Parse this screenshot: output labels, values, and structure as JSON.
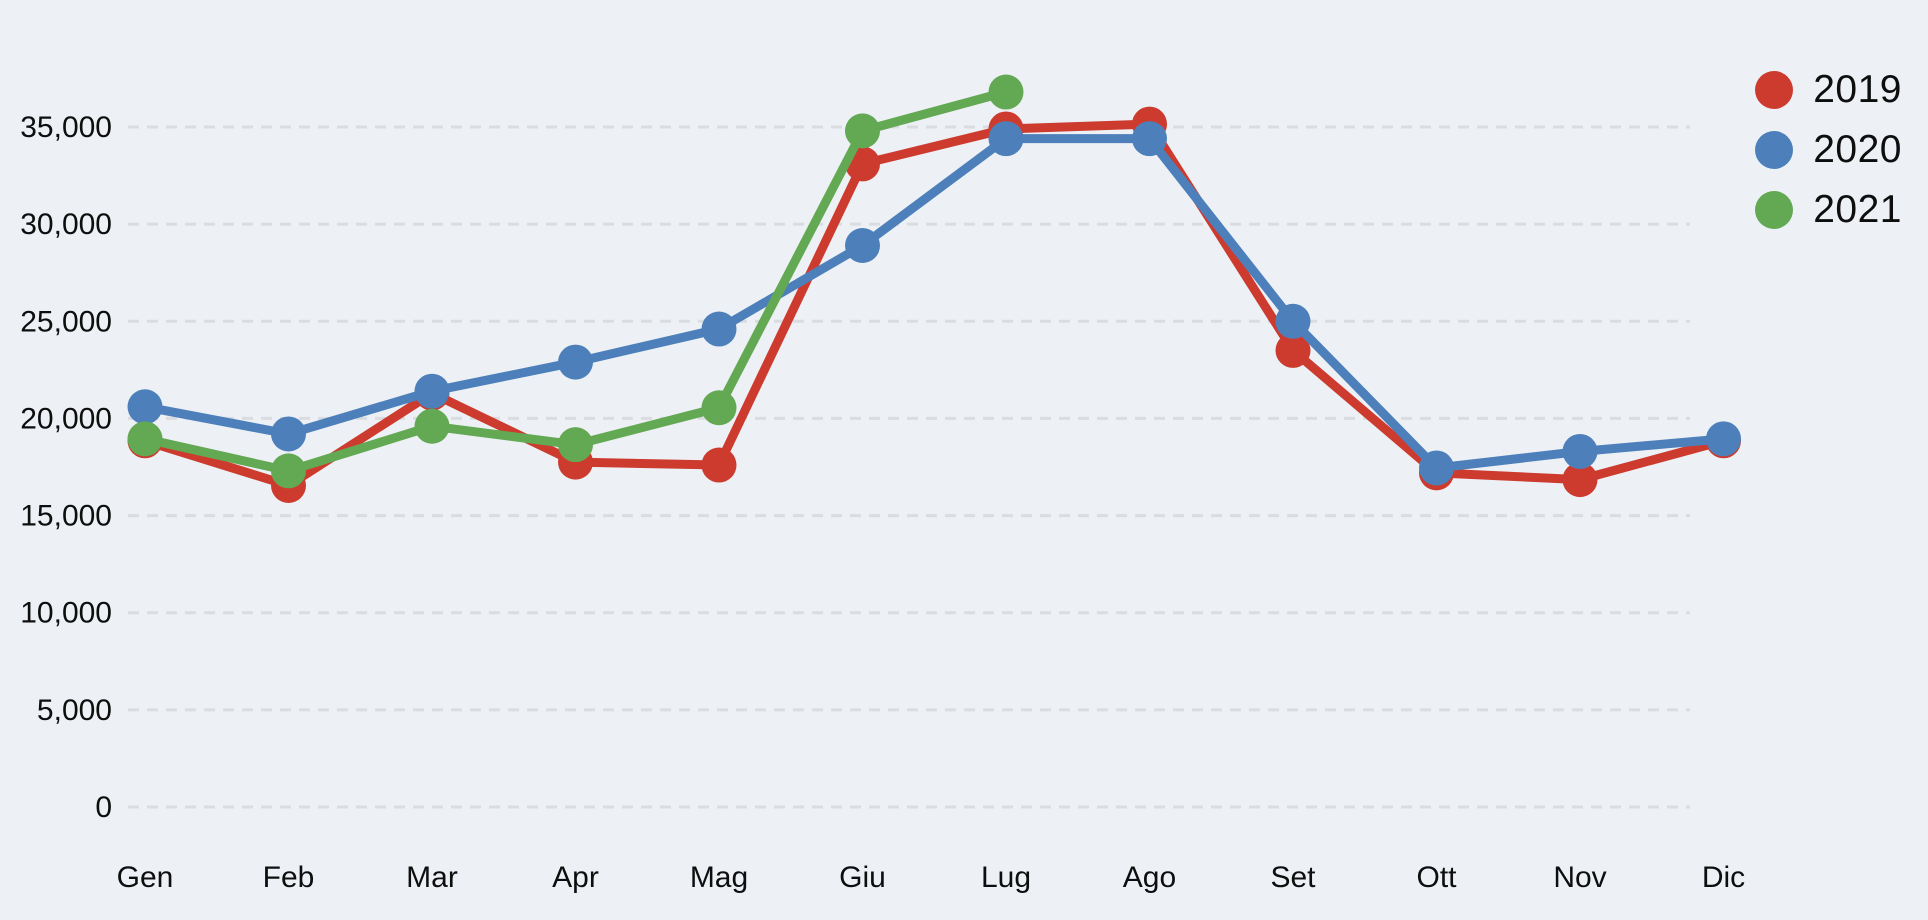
{
  "page": {
    "background_color": "#edf1f6",
    "text_color": "#0e0e0e",
    "gridline_color": "#d9dce0"
  },
  "legend": {
    "items": [
      {
        "label": "2019",
        "color": "#cd3b2f"
      },
      {
        "label": "2020",
        "color": "#4d80ba"
      },
      {
        "label": "2021",
        "color": "#63a852"
      }
    ]
  },
  "chart_data": {
    "type": "line",
    "categories": [
      "Gen",
      "Feb",
      "Mar",
      "Apr",
      "Mag",
      "Giu",
      "Lug",
      "Ago",
      "Set",
      "Ott",
      "Nov",
      "Dic"
    ],
    "series": [
      {
        "name": "2019",
        "color": "#cd3b2f",
        "values": [
          18850,
          16550,
          21300,
          17750,
          17600,
          33100,
          34900,
          35150,
          23500,
          17200,
          16850,
          18850
        ]
      },
      {
        "name": "2020",
        "color": "#4d80ba",
        "values": [
          20600,
          19200,
          21400,
          22900,
          24600,
          28900,
          34400,
          34400,
          25000,
          17450,
          18300,
          18950
        ]
      },
      {
        "name": "2021",
        "color": "#63a852",
        "values": [
          18950,
          17300,
          19600,
          18650,
          20550,
          34800,
          36800,
          null,
          null,
          null,
          null,
          null
        ]
      }
    ],
    "title": "",
    "xlabel": "",
    "ylabel": "",
    "ylim": [
      0,
      37500
    ],
    "yticks": [
      0,
      5000,
      10000,
      15000,
      20000,
      25000,
      30000,
      35000
    ],
    "ytick_labels": [
      "0",
      "5,000",
      "10,000",
      "15,000",
      "20,000",
      "25,000",
      "30,000",
      "35,000"
    ],
    "grid": "horizontal-dashed",
    "legend_position": "top-right",
    "marker": "circle",
    "notes": "2021 series ends at Lug (July)"
  }
}
